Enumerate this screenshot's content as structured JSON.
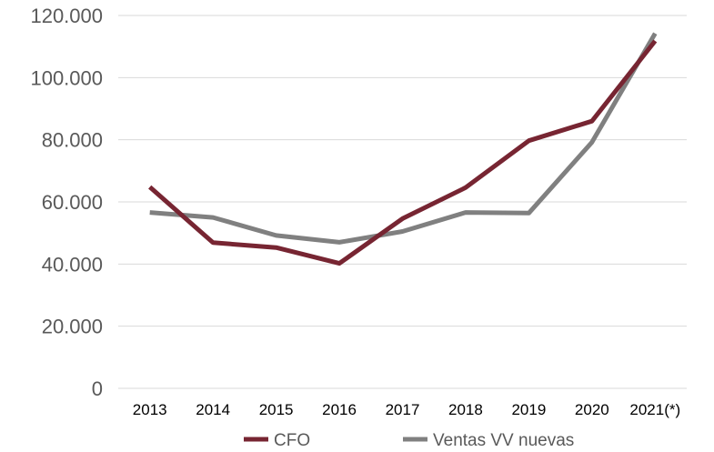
{
  "chart_data": {
    "type": "line",
    "title": "",
    "xlabel": "",
    "ylabel": "",
    "categories": [
      "2013",
      "2014",
      "2015",
      "2016",
      "2017",
      "2018",
      "2019",
      "2020",
      "2021(*)"
    ],
    "ylim": [
      0,
      120000
    ],
    "yticks": [
      0,
      20000,
      40000,
      60000,
      80000,
      100000,
      120000
    ],
    "ytick_labels": [
      "0",
      "20.000",
      "40.000",
      "60.000",
      "80.000",
      "100.000",
      "120.000"
    ],
    "grid": "horizontal",
    "legend": "bottom",
    "series": [
      {
        "name": "CFO",
        "color": "#772532",
        "values": [
          64800,
          46900,
          45300,
          40200,
          54600,
          64600,
          79700,
          86000,
          111800
        ]
      },
      {
        "name": "Ventas VV nuevas",
        "color": "#808080",
        "values": [
          56600,
          55000,
          49200,
          47000,
          50500,
          56600,
          56400,
          79200,
          114200
        ]
      }
    ]
  }
}
